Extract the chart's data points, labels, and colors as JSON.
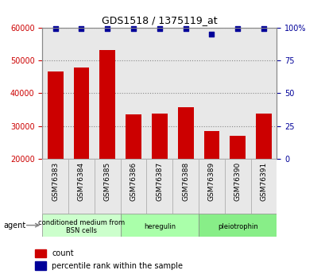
{
  "title": "GDS1518 / 1375119_at",
  "categories": [
    "GSM76383",
    "GSM76384",
    "GSM76385",
    "GSM76386",
    "GSM76387",
    "GSM76388",
    "GSM76389",
    "GSM76390",
    "GSM76391"
  ],
  "counts": [
    46500,
    47800,
    53000,
    33500,
    33800,
    35800,
    28500,
    27000,
    33800
  ],
  "percentiles": [
    99,
    99,
    99,
    99,
    99,
    99,
    95,
    99,
    99
  ],
  "ylim_left": [
    20000,
    60000
  ],
  "ylim_right": [
    0,
    100
  ],
  "yticks_left": [
    20000,
    30000,
    40000,
    50000,
    60000
  ],
  "yticks_right": [
    0,
    25,
    50,
    75,
    100
  ],
  "bar_color": "#cc0000",
  "dot_color": "#000099",
  "bar_bottom": 20000,
  "groups": [
    {
      "label": "conditioned medium from\nBSN cells",
      "start": 0,
      "end": 3,
      "color": "#ccffcc"
    },
    {
      "label": "heregulin",
      "start": 3,
      "end": 6,
      "color": "#aaffaa"
    },
    {
      "label": "pleiotrophin",
      "start": 6,
      "end": 9,
      "color": "#88ee88"
    }
  ],
  "agent_label": "agent",
  "legend_count_label": "count",
  "legend_percentile_label": "percentile rank within the sample",
  "tick_label_color_left": "#cc0000",
  "tick_label_color_right": "#000099",
  "grid_color": "#888888",
  "background_color": "#e8e8e8"
}
